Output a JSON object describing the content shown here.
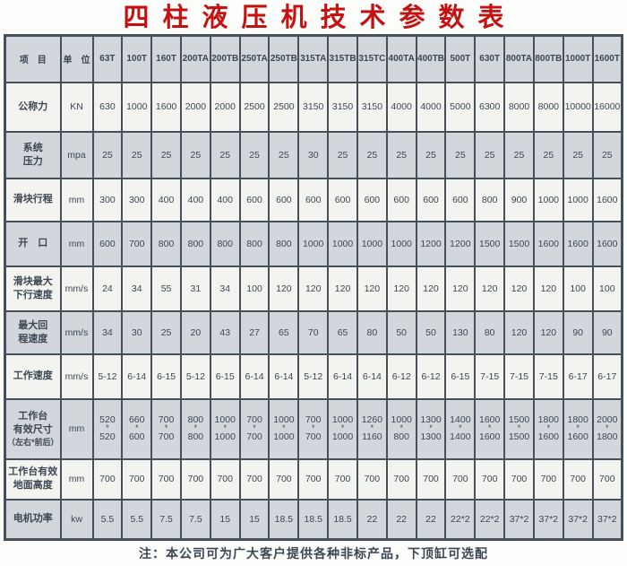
{
  "title": "四柱液压机技术参数表",
  "note": "注：本公司可为广大客户提供各种非标产品，下顶缸可选配",
  "colors": {
    "red": "#c41212",
    "border": "#44505a",
    "gray": "#d3d6db",
    "white": "#f3f3ef",
    "text": "#3c4754"
  },
  "table": {
    "header": [
      "项　目",
      "单　位",
      "63T",
      "100T",
      "160T",
      "200TA",
      "200TB",
      "250TA",
      "250TB",
      "315TA",
      "315TB",
      "315TC",
      "400TA",
      "400TB",
      "500T",
      "630T",
      "800TA",
      "800TB",
      "1000T",
      "1600T"
    ],
    "rows": [
      {
        "key": "nominal-force",
        "label_lines": [
          "公称力"
        ],
        "unit": "KN",
        "values": [
          "630",
          "1000",
          "1600",
          "2000",
          "2000",
          "2500",
          "2500",
          "3150",
          "3150",
          "3150",
          "4000",
          "4000",
          "5000",
          "6300",
          "8000",
          "8000",
          "10000",
          "16000"
        ]
      },
      {
        "key": "system-pressure",
        "label_lines": [
          "系统",
          "压力"
        ],
        "unit": "mpa",
        "values": [
          "25",
          "25",
          "25",
          "25",
          "25",
          "25",
          "25",
          "30",
          "25",
          "25",
          "25",
          "25",
          "25",
          "25",
          "25",
          "25",
          "25",
          "25"
        ]
      },
      {
        "key": "slider-stroke",
        "label_lines": [
          "滑块行程"
        ],
        "unit": "mm",
        "values": [
          "300",
          "300",
          "400",
          "400",
          "400",
          "600",
          "600",
          "600",
          "600",
          "600",
          "600",
          "600",
          "600",
          "800",
          "900",
          "1000",
          "1000",
          "1600"
        ]
      },
      {
        "key": "opening",
        "label_lines": [
          "开　口"
        ],
        "unit": "mm",
        "values": [
          "600",
          "700",
          "800",
          "800",
          "800",
          "800",
          "800",
          "1000",
          "1000",
          "1000",
          "1000",
          "1200",
          "1200",
          "1500",
          "1500",
          "1600",
          "1600",
          "1600"
        ]
      },
      {
        "key": "slider-max-down-speed",
        "label_lines": [
          "滑块最大",
          "下行速度"
        ],
        "unit": "mm/s",
        "values": [
          "24",
          "34",
          "55",
          "31",
          "34",
          "100",
          "120",
          "120",
          "120",
          "120",
          "120",
          "120",
          "120",
          "120",
          "120",
          "120",
          "100",
          "100"
        ]
      },
      {
        "key": "max-return-speed",
        "label_lines": [
          "最大回",
          "程速度"
        ],
        "unit": "mm/s",
        "values": [
          "34",
          "30",
          "25",
          "20",
          "43",
          "27",
          "65",
          "70",
          "65",
          "80",
          "50",
          "50",
          "130",
          "80",
          "120",
          "120",
          "90",
          "90"
        ]
      },
      {
        "key": "working-speed",
        "label_lines": [
          "工作速度"
        ],
        "unit": "mm/s",
        "values": [
          "5-12",
          "6-14",
          "6-15",
          "5-12",
          "6-15",
          "6-14",
          "6-14",
          "5-12",
          "6-14",
          "6-14",
          "6-12",
          "6-12",
          "6-15",
          "7-15",
          "7-15",
          "7-15",
          "6-17",
          "6-17"
        ]
      },
      {
        "key": "worktable-effective-size",
        "label_lines": [
          "工作台",
          "有效尺寸",
          "（左右*前后）"
        ],
        "unit": "mm",
        "stacked": true,
        "values": [
          "520*520",
          "660*600",
          "700*700",
          "800*800",
          "1000*1000",
          "700*700",
          "1000*1000",
          "700*700",
          "1000*1000",
          "1260*1160",
          "1000*800",
          "1300*1300",
          "1400*1400",
          "1600*1600",
          "1500*1500",
          "1800*1600",
          "1800*1600",
          "2000*1800"
        ]
      },
      {
        "key": "worktable-floor-height",
        "label_lines": [
          "工作台有效",
          "地面高度"
        ],
        "unit": "mm",
        "values": [
          "700",
          "700",
          "700",
          "700",
          "700",
          "700",
          "700",
          "700",
          "700",
          "700",
          "700",
          "700",
          "700",
          "700",
          "700",
          "700",
          "700",
          "700"
        ]
      },
      {
        "key": "motor-power",
        "label_lines": [
          "电机功率"
        ],
        "unit": "kw",
        "values": [
          "5.5",
          "5.5",
          "7.5",
          "7.5",
          "15",
          "15",
          "18.5",
          "18.5",
          "18.5",
          "22",
          "22",
          "22",
          "22*2",
          "22*2",
          "37*2",
          "37*2",
          "37*2",
          "37*2"
        ]
      }
    ]
  }
}
